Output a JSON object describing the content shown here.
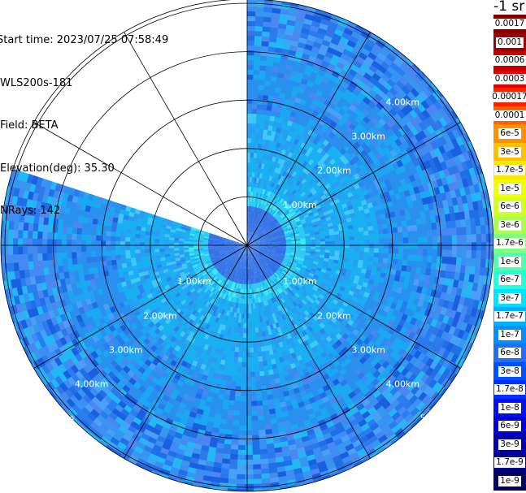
{
  "header": {
    "lines": [
      "Start time: 2023/07/25 07:58:49",
      "WLS200s-181",
      "Field: BETA",
      "Elevation(deg): 35.30",
      "NRays: 142"
    ]
  },
  "colorbar": {
    "units": "-1 sr",
    "labels": [
      "0.0017",
      "0.001",
      "0.0006",
      "0.0003",
      "0.00017",
      "0.0001",
      "6e-5",
      "3e-5",
      "1.7e-5",
      "1e-5",
      "6e-6",
      "3e-6",
      "1.7e-6",
      "1e-6",
      "6e-7",
      "3e-7",
      "1.7e-7",
      "1e-7",
      "6e-8",
      "3e-8",
      "1.7e-8",
      "1e-8",
      "6e-9",
      "3e-9",
      "1.7e-9",
      "1e-9"
    ],
    "colors": [
      "#800000",
      "#a00000",
      "#c00000",
      "#e00000",
      "#ff2000",
      "#ff6000",
      "#ff9000",
      "#ffc000",
      "#ffe800",
      "#f0ff00",
      "#d0ff20",
      "#a8ff50",
      "#80ff80",
      "#50ffa8",
      "#20ffd8",
      "#00e0ff",
      "#00b0ff",
      "#0090ff",
      "#2070f0",
      "#0050ff",
      "#0030ff",
      "#0010f0",
      "#0000d0",
      "#0000a8",
      "#000080",
      "#000060"
    ]
  },
  "range_rings": {
    "labels": [
      "1.00km",
      "2.00km",
      "3.00km",
      "4.00km",
      "5.00km"
    ]
  }
}
